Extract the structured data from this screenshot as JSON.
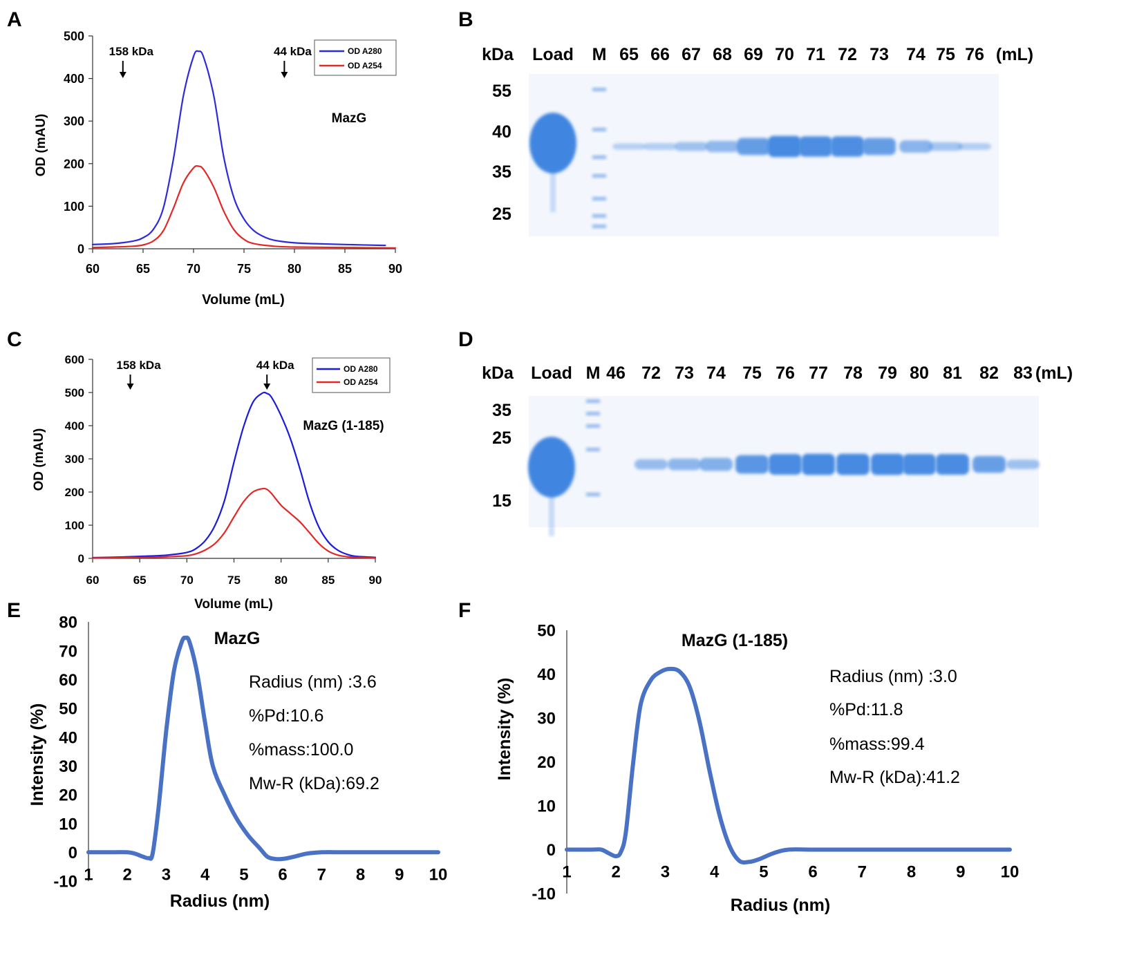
{
  "panels": {
    "A": "A",
    "B": "B",
    "C": "C",
    "D": "D",
    "E": "E",
    "F": "F"
  },
  "colors": {
    "a280": "#2b2bdc",
    "a254": "#e32626",
    "dls": "#4a72c4",
    "gel_band": "#3f86e0",
    "gel_bg": "#f3f6fc"
  },
  "chart_data": [
    {
      "id": "A",
      "type": "line",
      "title": "MazG",
      "xlabel": "Volume (mL)",
      "ylabel": "OD  (mAU)",
      "xlim": [
        60,
        90
      ],
      "ylim": [
        0,
        500
      ],
      "xticks": [
        "60",
        "65",
        "70",
        "75",
        "80",
        "85",
        "90"
      ],
      "yticks": [
        "0",
        "100",
        "200",
        "300",
        "400",
        "500"
      ],
      "legend": {
        "position": "top-right",
        "entries": [
          "OD A280",
          "OD A254"
        ]
      },
      "annotations": [
        {
          "label": "158 kDa",
          "x": 63
        },
        {
          "label": "44 kDa",
          "x": 79
        }
      ],
      "series": [
        {
          "name": "OD A280",
          "color": "#2b2bdc",
          "x_end": 89,
          "x": [
            60,
            62,
            64,
            65,
            66,
            67,
            68,
            69,
            70,
            70.5,
            71,
            72,
            73,
            74,
            75,
            76,
            77,
            78,
            80,
            82,
            85,
            89
          ],
          "y": [
            10,
            12,
            18,
            26,
            45,
            95,
            210,
            360,
            452,
            464,
            450,
            360,
            215,
            120,
            70,
            42,
            28,
            20,
            14,
            12,
            10,
            8
          ]
        },
        {
          "name": "OD A254",
          "color": "#e32626",
          "x_end": 90,
          "x": [
            60,
            62,
            64,
            65,
            66,
            67,
            68,
            69,
            70,
            70.5,
            71,
            72,
            73,
            74,
            75,
            76,
            78,
            80,
            85,
            90
          ],
          "y": [
            3,
            4,
            6,
            9,
            18,
            42,
            95,
            155,
            190,
            194,
            186,
            145,
            88,
            45,
            22,
            12,
            6,
            4,
            3,
            2
          ]
        }
      ]
    },
    {
      "id": "C",
      "type": "line",
      "title": "MazG (1-185)",
      "xlabel": "Volume (mL)",
      "ylabel": "OD  (mAU)",
      "xlim": [
        60,
        90
      ],
      "ylim": [
        0,
        600
      ],
      "xticks": [
        "60",
        "65",
        "70",
        "75",
        "80",
        "85",
        "90"
      ],
      "yticks": [
        "0",
        "100",
        "200",
        "300",
        "400",
        "500",
        "600"
      ],
      "legend": {
        "position": "top-right",
        "entries": [
          "OD A280",
          "OD A254"
        ]
      },
      "annotations": [
        {
          "label": "158 kDa",
          "x": 64
        },
        {
          "label": "44 kDa",
          "x": 78.5
        }
      ],
      "series": [
        {
          "name": "OD A280",
          "color": "#1a1ae0",
          "x_end": 90,
          "x": [
            60,
            63,
            66,
            68,
            70,
            71,
            72,
            73,
            74,
            75,
            76,
            77,
            78,
            78.5,
            79,
            80,
            81,
            82,
            83,
            84,
            85,
            86,
            87,
            88,
            90
          ],
          "y": [
            2,
            4,
            7,
            10,
            18,
            30,
            55,
            100,
            175,
            290,
            395,
            470,
            498,
            497,
            485,
            430,
            360,
            270,
            170,
            95,
            50,
            25,
            12,
            6,
            3
          ]
        },
        {
          "name": "OD A254",
          "color": "#e32626",
          "x_end": 90,
          "x": [
            60,
            63,
            66,
            68,
            70,
            71,
            72,
            73,
            74,
            75,
            76,
            77,
            78,
            78.5,
            79,
            80,
            81,
            82,
            83,
            84,
            85,
            86,
            87,
            88,
            90
          ],
          "y": [
            1,
            2,
            3,
            5,
            8,
            14,
            26,
            45,
            78,
            125,
            170,
            200,
            210,
            208,
            195,
            160,
            135,
            110,
            78,
            45,
            22,
            10,
            5,
            3,
            1
          ]
        }
      ]
    },
    {
      "id": "E",
      "type": "line",
      "title": "MazG",
      "xlabel": "Radius (nm)",
      "ylabel": "Intensity (%)",
      "xlim": [
        1,
        10
      ],
      "ylim": [
        -10,
        80
      ],
      "xticks": [
        "1",
        "2",
        "3",
        "4",
        "5",
        "6",
        "7",
        "8",
        "9",
        "10"
      ],
      "yticks": [
        "-10",
        "0",
        "10",
        "20",
        "30",
        "40",
        "50",
        "60",
        "70",
        "80"
      ],
      "stats": [
        "Radius (nm) :3.6",
        "%Pd:10.6",
        "%mass:100.0",
        "Mw-R (kDa):69.2"
      ],
      "series": [
        {
          "name": "Intensity",
          "color": "#4a72c4",
          "x": [
            1,
            1.5,
            2,
            2.2,
            2.4,
            2.55,
            2.65,
            2.8,
            3.0,
            3.2,
            3.4,
            3.5,
            3.6,
            3.8,
            4.0,
            4.2,
            4.5,
            4.8,
            5.1,
            5.4,
            5.6,
            5.8,
            6.0,
            6.3,
            6.6,
            7.0,
            7.5,
            8,
            9,
            10
          ],
          "y": [
            0,
            0,
            0,
            -0.5,
            -1.5,
            -2.0,
            -0.5,
            15,
            42,
            63,
            73,
            74.5,
            73,
            62,
            45,
            30,
            20,
            12,
            6,
            1.5,
            -1.5,
            -2.3,
            -2.3,
            -1.5,
            -0.5,
            0,
            0,
            0,
            0,
            0
          ]
        }
      ]
    },
    {
      "id": "F",
      "type": "line",
      "title": "MazG (1-185)",
      "xlabel": "Radius (nm)",
      "ylabel": "Intensity (%)",
      "xlim": [
        1,
        10
      ],
      "ylim": [
        -10,
        50
      ],
      "xticks": [
        "1",
        "2",
        "3",
        "4",
        "5",
        "6",
        "7",
        "8",
        "9",
        "10"
      ],
      "yticks": [
        "-10",
        "0",
        "10",
        "20",
        "30",
        "40",
        "50"
      ],
      "stats": [
        "Radius (nm) :3.0",
        "%Pd:11.8",
        "%mass:99.4",
        "Mw-R (kDa):41.2"
      ],
      "series": [
        {
          "name": "Intensity",
          "color": "#4a72c4",
          "x": [
            1,
            1.5,
            1.7,
            1.85,
            2.0,
            2.1,
            2.2,
            2.35,
            2.5,
            2.7,
            2.9,
            3.1,
            3.3,
            3.5,
            3.7,
            3.9,
            4.1,
            4.3,
            4.5,
            4.7,
            4.9,
            5.2,
            5.5,
            6,
            7,
            8,
            9,
            10
          ],
          "y": [
            0,
            0,
            0,
            -0.8,
            -1.5,
            -0.5,
            4,
            20,
            33,
            38.5,
            40.5,
            41.2,
            40.5,
            37,
            29,
            18,
            8,
            1,
            -2.5,
            -2.8,
            -2.2,
            -0.8,
            0,
            0,
            0,
            0,
            0,
            0
          ]
        }
      ]
    }
  ],
  "gels": {
    "B": {
      "header_kda": "kDa",
      "header_unit": "(mL)",
      "lanes": [
        "Load",
        "M",
        "65",
        "66",
        "67",
        "68",
        "69",
        "70",
        "71",
        "72",
        "73",
        "74",
        "75",
        "76"
      ],
      "markers": [
        "55",
        "40",
        "35",
        "25"
      ],
      "band_intensity": [
        1.0,
        0.4,
        0.12,
        0.15,
        0.28,
        0.4,
        0.72,
        0.95,
        0.9,
        0.9,
        0.72,
        0.45,
        0.25,
        0.15
      ]
    },
    "D": {
      "header_kda": "kDa",
      "header_unit": "(mL)",
      "lanes": [
        "Load",
        "M",
        "46",
        "72",
        "73",
        "74",
        "75",
        "76",
        "77",
        "78",
        "79",
        "80",
        "81",
        "82",
        "83"
      ],
      "markers": [
        "35",
        "25",
        "15"
      ],
      "band_intensity": [
        1.0,
        0.4,
        0.0,
        0.35,
        0.42,
        0.5,
        0.8,
        0.92,
        0.95,
        0.95,
        0.95,
        0.92,
        0.92,
        0.7,
        0.3
      ]
    }
  }
}
